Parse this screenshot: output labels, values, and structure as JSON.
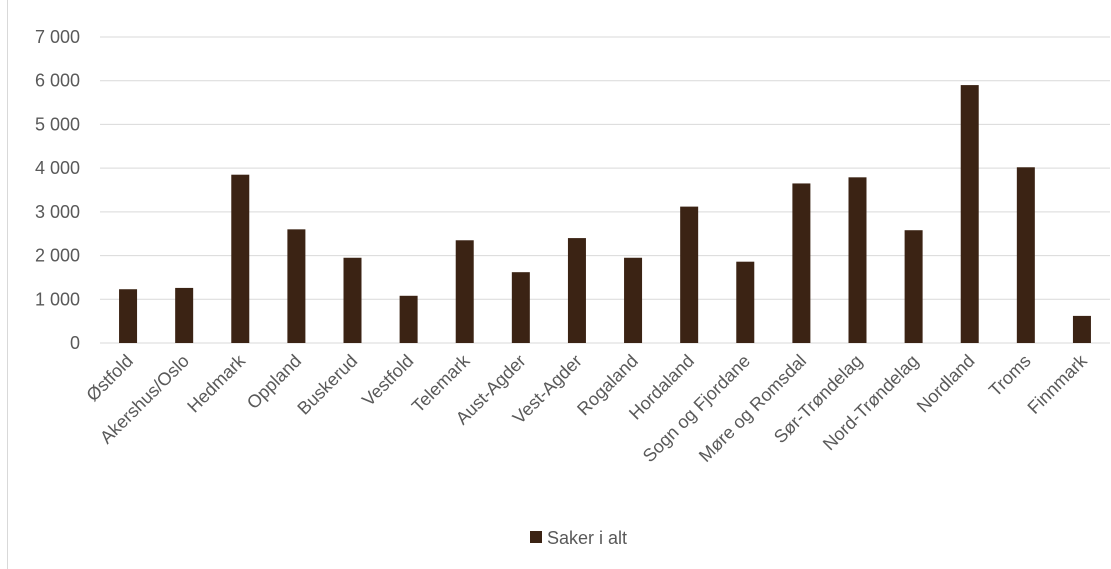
{
  "chart_data": {
    "type": "bar",
    "categories": [
      "Østfold",
      "Akershus/Oslo",
      "Hedmark",
      "Oppland",
      "Buskerud",
      "Vestfold",
      "Telemark",
      "Aust-Agder",
      "Vest-Agder",
      "Rogaland",
      "Hordaland",
      "Sogn og Fjordane",
      "Møre og Romsdal",
      "Sør-Trøndelag",
      "Nord-Trøndelag",
      "Nordland",
      "Troms",
      "Finnmark"
    ],
    "series": [
      {
        "name": "Saker i alt",
        "color": "#3b2314",
        "values": [
          1230,
          1260,
          3850,
          2600,
          1950,
          1080,
          2350,
          1620,
          2400,
          1950,
          3120,
          1860,
          3650,
          3790,
          2580,
          5900,
          4020,
          620
        ]
      }
    ],
    "yticks": [
      "0",
      "1 000",
      "2 000",
      "3 000",
      "4 000",
      "5 000",
      "6 000",
      "7 000"
    ],
    "ylim": [
      0,
      7000
    ],
    "grid": true,
    "legend_position": "bottom",
    "gridline_color": "#d9d9d9"
  }
}
